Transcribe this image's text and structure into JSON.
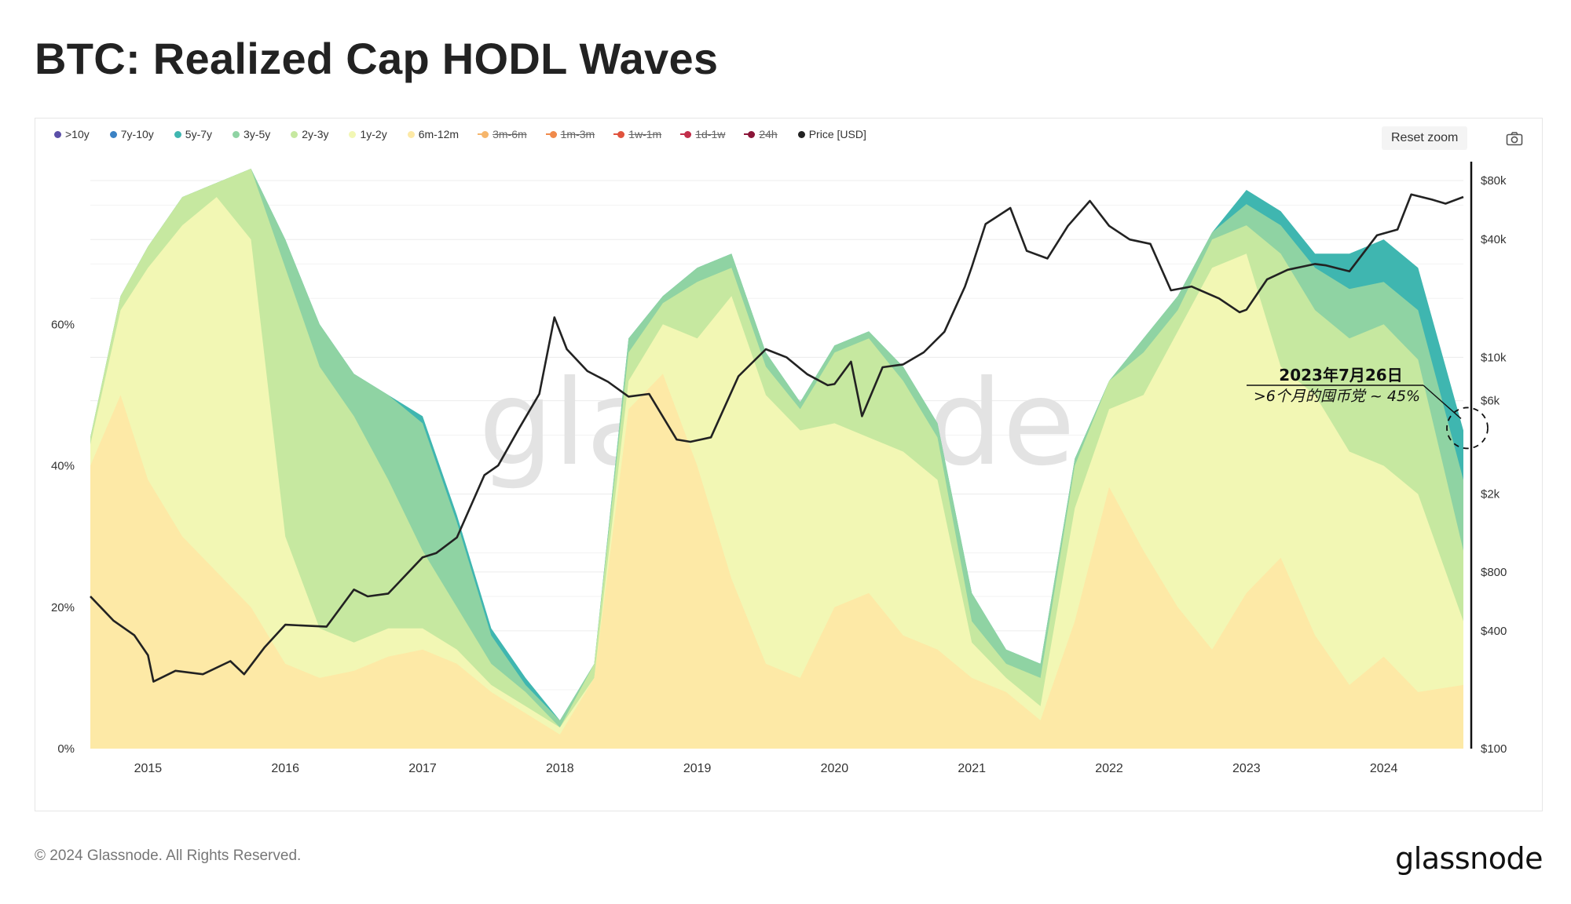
{
  "header": {
    "title": "BTC: Realized Cap HODL Waves"
  },
  "toolbar": {
    "reset_zoom_label": "Reset zoom",
    "camera_icon": "camera-icon"
  },
  "footer": {
    "copyright": "© 2024 Glassnode. All Rights Reserved.",
    "logo": "glassnode"
  },
  "chart_data": {
    "type": "area",
    "title": "BTC: Realized Cap HODL Waves",
    "watermark": "glassnode",
    "x_ticks": [
      "2015",
      "2016",
      "2017",
      "2018",
      "2019",
      "2020",
      "2021",
      "2022",
      "2023",
      "2024"
    ],
    "x_range": [
      2014.58,
      2024.58
    ],
    "y_left_ticks": [
      "60%",
      "40%",
      "20%",
      "0%"
    ],
    "y_left_tick_values": [
      60,
      40,
      20,
      0
    ],
    "y_left_range": [
      0,
      83
    ],
    "y_right_ticks": [
      "$80k",
      "$40k",
      "$10k",
      "$6k",
      "$2k",
      "$800",
      "$400",
      "$100"
    ],
    "y_right_tick_values": [
      80000,
      40000,
      10000,
      6000,
      2000,
      800,
      400,
      100
    ],
    "y_right_scale": "log",
    "y_right_range": [
      100,
      100000
    ],
    "legend": [
      {
        "label": ">10y",
        "color": "#5b4fa8",
        "visible": true
      },
      {
        "label": "7y-10y",
        "color": "#3b82c4",
        "visible": true
      },
      {
        "label": "5y-7y",
        "color": "#3fb6b0",
        "visible": true
      },
      {
        "label": "3y-5y",
        "color": "#8fd3a3",
        "visible": true
      },
      {
        "label": "2y-3y",
        "color": "#c6e8a0",
        "visible": true
      },
      {
        "label": "1y-2y",
        "color": "#f2f7b4",
        "visible": true
      },
      {
        "label": "6m-12m",
        "color": "#fde9a6",
        "visible": true
      },
      {
        "label": "3m-6m",
        "color": "#f6b66c",
        "visible": false
      },
      {
        "label": "1m-3m",
        "color": "#f08a4b",
        "visible": false
      },
      {
        "label": "1w-1m",
        "color": "#e0533d",
        "visible": false
      },
      {
        "label": "1d-1w",
        "color": "#c22e4a",
        "visible": false
      },
      {
        "label": "24h",
        "color": "#8a1538",
        "visible": false
      },
      {
        "label": "Price [USD]",
        "color": "#222222",
        "visible": true
      }
    ],
    "x": [
      2014.58,
      2014.8,
      2015.0,
      2015.25,
      2015.5,
      2015.75,
      2016.0,
      2016.25,
      2016.5,
      2016.75,
      2017.0,
      2017.25,
      2017.5,
      2017.75,
      2018.0,
      2018.25,
      2018.5,
      2018.75,
      2019.0,
      2019.25,
      2019.5,
      2019.75,
      2020.0,
      2020.25,
      2020.5,
      2020.75,
      2021.0,
      2021.25,
      2021.5,
      2021.75,
      2022.0,
      2022.25,
      2022.5,
      2022.75,
      2023.0,
      2023.25,
      2023.5,
      2023.75,
      2024.0,
      2024.25,
      2024.58
    ],
    "series": [
      {
        "name": "6m-12m",
        "color": "#fde9a6",
        "values": [
          40,
          50,
          38,
          30,
          25,
          20,
          12,
          10,
          11,
          13,
          14,
          12,
          8,
          5,
          2,
          10,
          48,
          53,
          40,
          24,
          12,
          10,
          20,
          22,
          16,
          14,
          10,
          8,
          4,
          18,
          37,
          28,
          20,
          14,
          22,
          27,
          16,
          9,
          13,
          8,
          9
        ]
      },
      {
        "name": "1y-2y",
        "color": "#f2f7b4",
        "values": [
          43,
          62,
          68,
          74,
          78,
          72,
          30,
          17,
          15,
          17,
          17,
          14,
          9,
          6,
          3,
          10,
          52,
          60,
          58,
          64,
          50,
          45,
          46,
          44,
          42,
          38,
          15,
          10,
          6,
          34,
          48,
          50,
          59,
          68,
          70,
          54,
          50,
          42,
          40,
          36,
          18
        ]
      },
      {
        "name": "2y-3y",
        "color": "#c6e8a0",
        "values": [
          44,
          64,
          71,
          78,
          80,
          82,
          68,
          54,
          47,
          38,
          28,
          20,
          12,
          8,
          3,
          12,
          56,
          63,
          66,
          68,
          54,
          48,
          56,
          58,
          52,
          44,
          18,
          12,
          10,
          40,
          52,
          56,
          62,
          72,
          74,
          70,
          62,
          58,
          60,
          55,
          28
        ]
      },
      {
        "name": "3y-5y",
        "color": "#8fd3a3",
        "values": [
          44,
          64,
          71,
          78,
          80,
          82,
          72,
          60,
          53,
          50,
          46,
          32,
          16,
          9,
          4,
          12,
          58,
          64,
          68,
          70,
          56,
          49,
          57,
          59,
          54,
          46,
          22,
          14,
          12,
          41,
          52,
          58,
          64,
          73,
          77,
          74,
          68,
          65,
          66,
          62,
          38
        ]
      },
      {
        "name": "5y-7y",
        "color": "#3fb6b0",
        "values": [
          44,
          64,
          71,
          78,
          80,
          82,
          72,
          60,
          53,
          50,
          47,
          33,
          17,
          10,
          4,
          12,
          58,
          64,
          68,
          70,
          56,
          49,
          57,
          59,
          54,
          46,
          22,
          14,
          12,
          41,
          52,
          58,
          64,
          73,
          79,
          76,
          70,
          70,
          72,
          68,
          45
        ]
      }
    ],
    "price": {
      "name": "Price [USD]",
      "color": "#222222",
      "x": [
        2014.58,
        2014.75,
        2014.9,
        2015.0,
        2015.04,
        2015.2,
        2015.4,
        2015.6,
        2015.7,
        2015.85,
        2016.0,
        2016.3,
        2016.5,
        2016.6,
        2016.75,
        2017.0,
        2017.1,
        2017.25,
        2017.45,
        2017.55,
        2017.7,
        2017.85,
        2017.96,
        2018.05,
        2018.2,
        2018.35,
        2018.5,
        2018.65,
        2018.85,
        2018.95,
        2019.1,
        2019.3,
        2019.5,
        2019.65,
        2019.8,
        2019.95,
        2020.0,
        2020.12,
        2020.2,
        2020.35,
        2020.5,
        2020.65,
        2020.8,
        2020.95,
        2021.0,
        2021.1,
        2021.28,
        2021.4,
        2021.55,
        2021.7,
        2021.86,
        2022.0,
        2022.15,
        2022.3,
        2022.45,
        2022.6,
        2022.8,
        2022.95,
        2023.0,
        2023.15,
        2023.3,
        2023.5,
        2023.58,
        2023.75,
        2023.95,
        2024.1,
        2024.2,
        2024.35,
        2024.45,
        2024.58
      ],
      "values": [
        600,
        450,
        380,
        300,
        220,
        250,
        240,
        280,
        240,
        330,
        430,
        420,
        650,
        600,
        620,
        950,
        1000,
        1200,
        2500,
        2800,
        4300,
        6500,
        16000,
        11000,
        8500,
        7500,
        6300,
        6500,
        3800,
        3700,
        3900,
        8000,
        11000,
        10000,
        8200,
        7200,
        7300,
        9500,
        5000,
        8900,
        9200,
        10600,
        13500,
        23000,
        29000,
        48000,
        58000,
        35000,
        32000,
        47000,
        63000,
        47000,
        40000,
        38000,
        22000,
        23000,
        20000,
        17000,
        17500,
        25000,
        28000,
        30000,
        29500,
        27500,
        42000,
        45000,
        68000,
        64000,
        61000,
        66000
      ]
    },
    "annotation": {
      "date_text": "2023年7月26日",
      "label_text": ">6个月的囤币党 ~ 45%",
      "x": 2024.58,
      "y": 45
    }
  }
}
